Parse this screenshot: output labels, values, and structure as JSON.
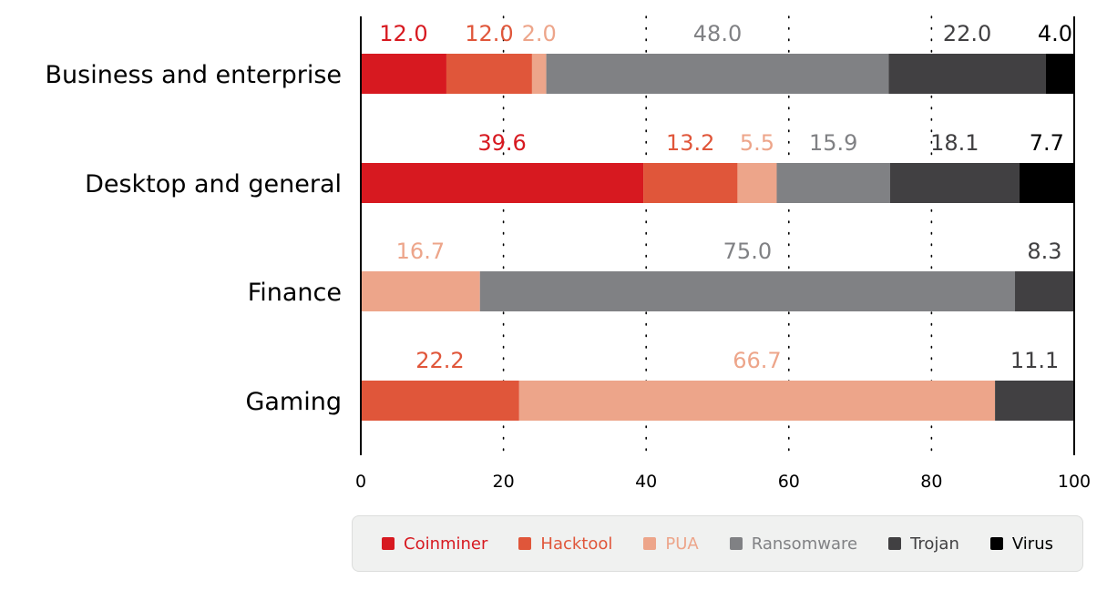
{
  "chart_data": {
    "type": "bar",
    "orientation": "horizontal",
    "stacked": true,
    "categories": [
      "Business and enterprise",
      "Desktop and general",
      "Finance",
      "Gaming"
    ],
    "series": [
      {
        "name": "Coinminer",
        "color": "#d71920",
        "values": [
          12.0,
          39.6,
          0,
          0
        ]
      },
      {
        "name": "Hacktool",
        "color": "#e0563a",
        "values": [
          12.0,
          13.2,
          0,
          22.2
        ]
      },
      {
        "name": "PUA",
        "color": "#eda58a",
        "values": [
          2.0,
          5.5,
          16.7,
          66.7
        ]
      },
      {
        "name": "Ransomware",
        "color": "#808184",
        "values": [
          48.0,
          15.9,
          75.0,
          0
        ]
      },
      {
        "name": "Trojan",
        "color": "#414042",
        "values": [
          22.0,
          18.1,
          8.3,
          11.1
        ]
      },
      {
        "name": "Virus",
        "color": "#000000",
        "values": [
          4.0,
          7.7,
          0,
          0
        ]
      }
    ],
    "xlim": [
      0,
      100
    ],
    "xticks": [
      "0",
      "20",
      "40",
      "60",
      "80",
      "100"
    ],
    "grid": "vertical dotted",
    "legend_position": "bottom",
    "data_labels": true
  }
}
